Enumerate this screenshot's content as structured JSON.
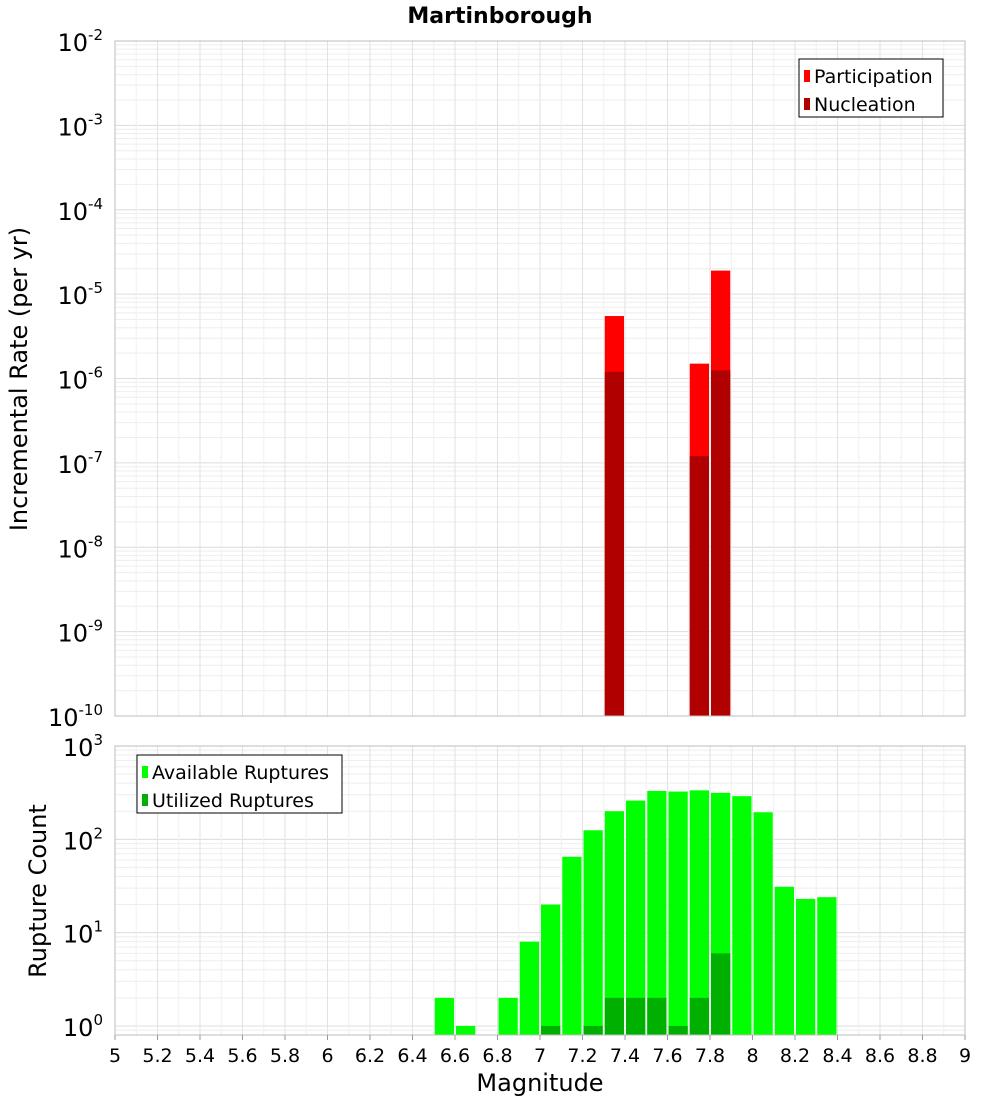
{
  "chart_data": [
    {
      "type": "bar",
      "title": "Martinborough",
      "xlabel": "",
      "ylabel": "Incremental Rate (per yr)",
      "yscale": "log",
      "ylim": [
        1e-10,
        0.01
      ],
      "xlim": [
        5,
        9
      ],
      "y_ticks": [
        {
          "base": "10",
          "exp": "-10"
        },
        {
          "base": "10",
          "exp": "-9"
        },
        {
          "base": "10",
          "exp": "-8"
        },
        {
          "base": "10",
          "exp": "-7"
        },
        {
          "base": "10",
          "exp": "-6"
        },
        {
          "base": "10",
          "exp": "-5"
        },
        {
          "base": "10",
          "exp": "-4"
        },
        {
          "base": "10",
          "exp": "-3"
        },
        {
          "base": "10",
          "exp": "-2"
        }
      ],
      "grid": true,
      "legend_position": "top-right",
      "series": [
        {
          "name": "Participation",
          "color": "#ff0000",
          "x": [
            7.35,
            7.75,
            7.85
          ],
          "values": [
            5.5e-06,
            1.5e-06,
            1.9e-05
          ]
        },
        {
          "name": "Nucleation",
          "color": "#b00000",
          "x": [
            7.35,
            7.75,
            7.85
          ],
          "values": [
            1.2e-06,
            1.2e-07,
            1.25e-06
          ]
        }
      ]
    },
    {
      "type": "bar",
      "title": "",
      "xlabel": "Magnitude",
      "ylabel": "Rupture Count",
      "yscale": "log",
      "ylim": [
        0.8,
        1000
      ],
      "xlim": [
        5,
        9
      ],
      "x_ticks": [
        "5",
        "5.2",
        "5.4",
        "5.6",
        "5.8",
        "6",
        "6.2",
        "6.4",
        "6.6",
        "6.8",
        "7",
        "7.2",
        "7.4",
        "7.6",
        "7.8",
        "8",
        "8.2",
        "8.4",
        "8.6",
        "8.8",
        "9"
      ],
      "y_ticks": [
        {
          "base": "10",
          "exp": "0"
        },
        {
          "base": "10",
          "exp": "1"
        },
        {
          "base": "10",
          "exp": "2"
        },
        {
          "base": "10",
          "exp": "3"
        }
      ],
      "grid": true,
      "legend_position": "top-left",
      "series": [
        {
          "name": "Available Ruptures",
          "color": "#00ff00",
          "x": [
            6.55,
            6.65,
            6.85,
            6.95,
            7.05,
            7.15,
            7.25,
            7.35,
            7.45,
            7.55,
            7.65,
            7.75,
            7.85,
            7.95,
            8.05,
            8.15,
            8.25,
            8.35
          ],
          "values": [
            2,
            1,
            2,
            8,
            20,
            65,
            125,
            200,
            260,
            330,
            325,
            335,
            315,
            290,
            195,
            31,
            23,
            24
          ]
        },
        {
          "name": "Utilized Ruptures",
          "color": "#00b000",
          "x": [
            7.05,
            7.25,
            7.35,
            7.45,
            7.55,
            7.65,
            7.75,
            7.85
          ],
          "values": [
            1,
            1,
            2,
            2,
            2,
            1,
            2,
            6
          ]
        }
      ]
    }
  ]
}
